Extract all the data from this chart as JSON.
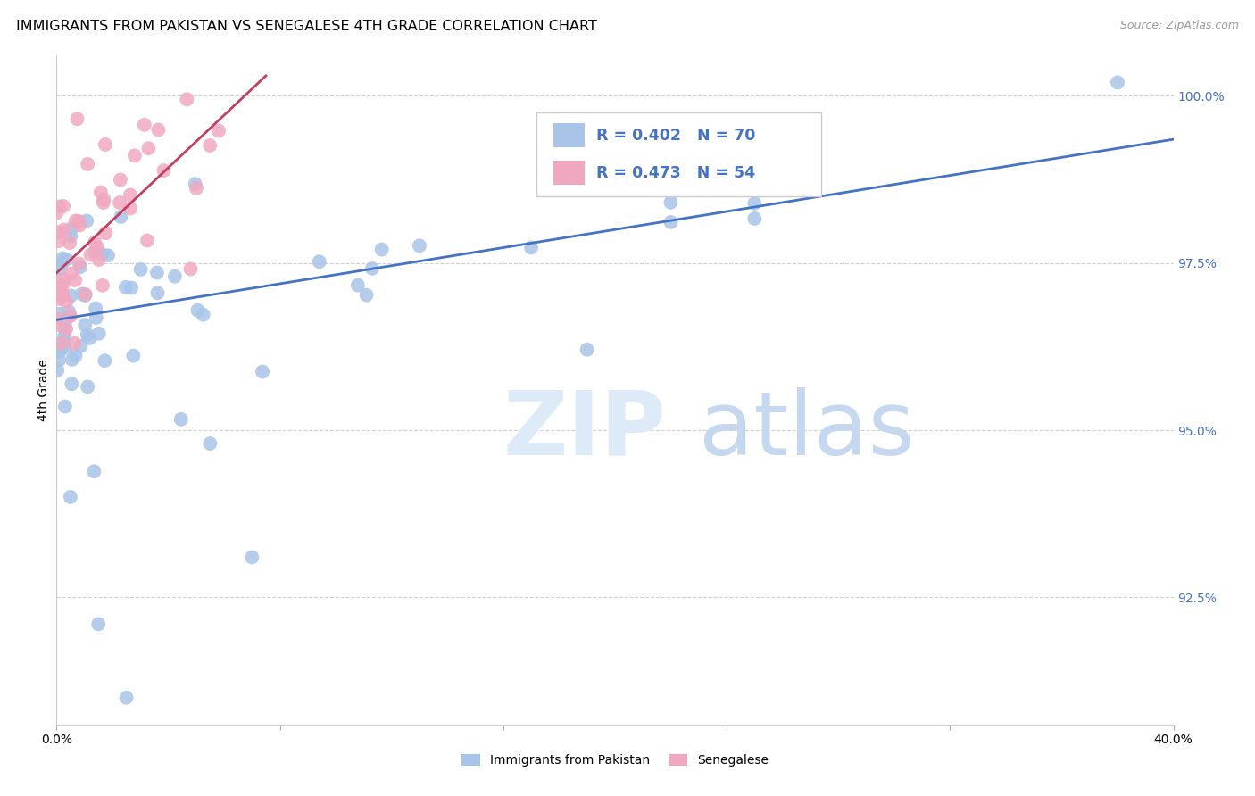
{
  "title": "IMMIGRANTS FROM PAKISTAN VS SENEGALESE 4TH GRADE CORRELATION CHART",
  "source": "Source: ZipAtlas.com",
  "ylabel": "4th Grade",
  "ytick_labels": [
    "100.0%",
    "97.5%",
    "95.0%",
    "92.5%"
  ],
  "ytick_values": [
    1.0,
    0.975,
    0.95,
    0.925
  ],
  "xlim": [
    0.0,
    0.4
  ],
  "ylim": [
    0.906,
    1.006
  ],
  "blue_R": 0.402,
  "blue_N": 70,
  "pink_R": 0.473,
  "pink_N": 54,
  "blue_color": "#a8c4e8",
  "pink_color": "#f0a8c0",
  "blue_line_color": "#4472c4",
  "pink_line_color": "#c04060",
  "legend_label_blue": "Immigrants from Pakistan",
  "legend_label_pink": "Senegalese",
  "background_color": "#ffffff",
  "grid_color": "#d0d0d0",
  "title_fontsize": 11.5,
  "axis_label_fontsize": 10,
  "tick_fontsize": 10,
  "blue_trend_x0": 0.0,
  "blue_trend_y0": 0.9665,
  "blue_trend_x1": 0.4,
  "blue_trend_y1": 0.9935,
  "pink_trend_x0": 0.0,
  "pink_trend_y0": 0.9735,
  "pink_trend_x1": 0.075,
  "pink_trend_y1": 1.003,
  "seed_blue": 42,
  "seed_pink": 99
}
